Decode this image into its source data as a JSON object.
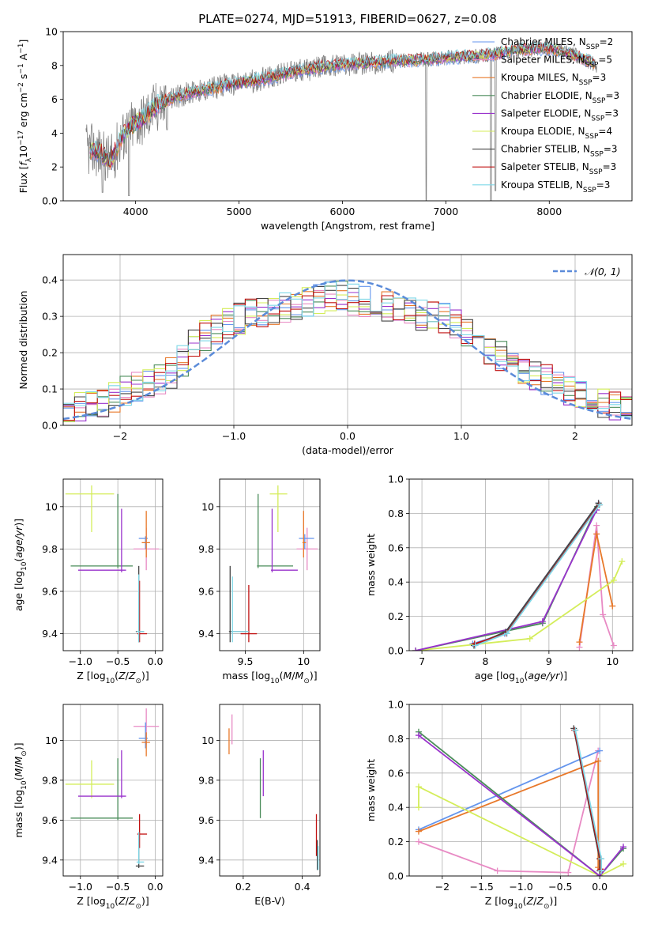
{
  "figure_title": "PLATE=0274, MJD=51913, FIBERID=0627, z=0.08",
  "chart_data": [
    {
      "type": "line",
      "title": "PLATE=0274, MJD=51913, FIBERID=0627, z=0.08",
      "xlabel": "wavelength [Angstrom, rest frame]",
      "ylabel": "Flux [fλ10⁻¹⁷ erg cm⁻² s⁻¹ A⁻¹]",
      "xlim": [
        3300,
        8800
      ],
      "ylim": [
        0,
        10
      ],
      "xticks": [
        4000,
        5000,
        6000,
        7000,
        8000
      ],
      "yticks": [
        0,
        2,
        4,
        6,
        8,
        10
      ],
      "legend_position": "top-right",
      "observed": {
        "color": "#808080",
        "continuum": [
          [
            3520,
            3.05
          ],
          [
            3650,
            2.9
          ],
          [
            3760,
            2.3
          ],
          [
            3850,
            3.6
          ],
          [
            3950,
            4.4
          ],
          [
            4080,
            4.9
          ],
          [
            4200,
            5.6
          ],
          [
            4350,
            6.05
          ],
          [
            4500,
            6.35
          ],
          [
            4700,
            6.6
          ],
          [
            4900,
            6.85
          ],
          [
            5100,
            7.05
          ],
          [
            5300,
            7.3
          ],
          [
            5500,
            7.6
          ],
          [
            5700,
            7.8
          ],
          [
            5900,
            8.0
          ],
          [
            6100,
            8.1
          ],
          [
            6300,
            8.15
          ],
          [
            6500,
            8.25
          ],
          [
            6700,
            8.3
          ],
          [
            6900,
            8.4
          ],
          [
            7100,
            8.5
          ],
          [
            7300,
            8.55
          ],
          [
            7500,
            8.7
          ],
          [
            7700,
            8.9
          ],
          [
            7900,
            9.0
          ],
          [
            8100,
            8.9
          ],
          [
            8300,
            8.5
          ],
          [
            8460,
            8.0
          ]
        ],
        "dips": [
          [
            3680,
            0.5
          ],
          [
            3935,
            0.3
          ],
          [
            4305,
            4.2
          ],
          [
            6810,
            0.0
          ],
          [
            7435,
            0.0
          ],
          [
            7480,
            0.6
          ]
        ]
      },
      "series": [
        {
          "name": "Chabrier MILES, NSSP=2",
          "color": "#6495ed"
        },
        {
          "name": "Salpeter MILES, NSSP=5",
          "color": "#e88ac4"
        },
        {
          "name": "Kroupa MILES, NSSP=3",
          "color": "#e8782a"
        },
        {
          "name": "Chabrier ELODIE, NSSP=3",
          "color": "#4a8c5a"
        },
        {
          "name": "Salpeter ELODIE, NSSP=3",
          "color": "#9932cc"
        },
        {
          "name": "Kroupa ELODIE, NSSP=4",
          "color": "#d4ed5a"
        },
        {
          "name": "Chabrier STELIB, NSSP=3",
          "color": "#444444"
        },
        {
          "name": "Salpeter STELIB, NSSP=3",
          "color": "#c01010"
        },
        {
          "name": "Kroupa STELIB, NSSP=3",
          "color": "#7fd8e8"
        }
      ]
    },
    {
      "type": "histogram",
      "xlabel": "(data-model)/error",
      "ylabel": "Normed distribution",
      "xlim": [
        -2.5,
        2.5
      ],
      "ylim": [
        0,
        0.47
      ],
      "xticks": [
        -2,
        -1,
        0,
        1,
        2
      ],
      "yticks": [
        0.0,
        0.1,
        0.2,
        0.3,
        0.4
      ],
      "bin_width": 0.1,
      "legend": [
        {
          "name": "𝒩(0, 1)",
          "color": "#5b8bd9",
          "style": "dashed"
        }
      ],
      "legend_position": "top-right",
      "base_curve": [
        [
          -2.5,
          0.045
        ],
        [
          -2.3,
          0.058
        ],
        [
          -2.1,
          0.07
        ],
        [
          -1.9,
          0.1
        ],
        [
          -1.7,
          0.12
        ],
        [
          -1.5,
          0.155
        ],
        [
          -1.3,
          0.24
        ],
        [
          -1.1,
          0.27
        ],
        [
          -0.9,
          0.3
        ],
        [
          -0.7,
          0.31
        ],
        [
          -0.5,
          0.33
        ],
        [
          -0.3,
          0.345
        ],
        [
          -0.1,
          0.355
        ],
        [
          0.1,
          0.345
        ],
        [
          0.3,
          0.33
        ],
        [
          0.5,
          0.31
        ],
        [
          0.7,
          0.3
        ],
        [
          0.9,
          0.29
        ],
        [
          1.1,
          0.25
        ],
        [
          1.3,
          0.195
        ],
        [
          1.5,
          0.165
        ],
        [
          1.7,
          0.13
        ],
        [
          1.9,
          0.1
        ],
        [
          2.1,
          0.075
        ],
        [
          2.3,
          0.058
        ],
        [
          2.5,
          0.04
        ]
      ],
      "spread": 0.045
    },
    {
      "type": "errorbar",
      "xlabel": "Z [log10(Z/Z⊙)]",
      "ylabel": "age  [log10(age/yr)]",
      "xlim": [
        -1.23,
        0.1
      ],
      "ylim": [
        9.32,
        10.13
      ],
      "xticks": [
        -1.0,
        -0.5,
        0.0
      ],
      "yticks": [
        9.4,
        9.6,
        9.8,
        10.0
      ],
      "points": [
        {
          "color": "#e88ac4",
          "x": -0.12,
          "y": 9.8,
          "xl": 0.17,
          "xr": 0.17,
          "yd": 0.1,
          "yu": 0.1
        },
        {
          "color": "#6495ed",
          "x": -0.13,
          "y": 9.85,
          "xl": 0.09,
          "xr": 0.03,
          "yd": 0.05,
          "yu": 0.01
        },
        {
          "color": "#e8782a",
          "x": -0.12,
          "y": 9.83,
          "xl": 0.06,
          "xr": 0.05,
          "yd": 0.07,
          "yu": 0.15
        },
        {
          "color": "#d4ed5a",
          "x": -0.85,
          "y": 10.06,
          "xl": 0.35,
          "xr": 0.3,
          "yd": 0.18,
          "yu": 0.04
        },
        {
          "color": "#4a8c5a",
          "x": -0.5,
          "y": 9.72,
          "xl": 0.63,
          "xr": 0.2,
          "yd": 0.01,
          "yu": 0.34
        },
        {
          "color": "#9932cc",
          "x": -0.45,
          "y": 9.7,
          "xl": 0.58,
          "xr": 0.06,
          "yd": 0.01,
          "yu": 0.29
        },
        {
          "color": "#444444",
          "x": -0.22,
          "y": 9.41,
          "xl": 0.04,
          "xr": 0.07,
          "yd": 0.05,
          "yu": 0.31
        },
        {
          "color": "#c01010",
          "x": -0.21,
          "y": 9.4,
          "xl": 0.03,
          "xr": 0.1,
          "yd": 0.04,
          "yu": 0.25
        },
        {
          "color": "#7fd8e8",
          "x": -0.22,
          "y": 9.41,
          "xl": 0.03,
          "xr": 0.07,
          "yd": 0.05,
          "yu": 0.27
        }
      ]
    },
    {
      "type": "errorbar",
      "xlabel": "mass [log10(M/M⊙)]",
      "ylabel": "",
      "xlim": [
        9.28,
        10.14
      ],
      "ylim": [
        9.32,
        10.13
      ],
      "xticks": [
        9.5,
        10.0
      ],
      "yticks": [
        9.4,
        9.6,
        9.8,
        10.0
      ],
      "points": [
        {
          "color": "#e88ac4",
          "x": 10.03,
          "y": 9.8,
          "xl": 0.09,
          "xr": 0.09,
          "yd": 0.1,
          "yu": 0.1
        },
        {
          "color": "#6495ed",
          "x": 10.01,
          "y": 9.85,
          "xl": 0.05,
          "xr": 0.08,
          "yd": 0.05,
          "yu": 0.02
        },
        {
          "color": "#e8782a",
          "x": 10.0,
          "y": 9.83,
          "xl": 0.01,
          "xr": 0.02,
          "yd": 0.07,
          "yu": 0.15
        },
        {
          "color": "#d4ed5a",
          "x": 9.78,
          "y": 10.06,
          "xl": 0.07,
          "xr": 0.08,
          "yd": 0.18,
          "yu": 0.04
        },
        {
          "color": "#4a8c5a",
          "x": 9.61,
          "y": 9.72,
          "xl": 0.01,
          "xr": 0.3,
          "yd": 0.01,
          "yu": 0.34
        },
        {
          "color": "#9932cc",
          "x": 9.73,
          "y": 9.7,
          "xl": 0.01,
          "xr": 0.22,
          "yd": 0.01,
          "yu": 0.29
        },
        {
          "color": "#444444",
          "x": 9.37,
          "y": 9.41,
          "xl": 0.01,
          "xr": 0.15,
          "yd": 0.05,
          "yu": 0.31
        },
        {
          "color": "#c01010",
          "x": 9.53,
          "y": 9.4,
          "xl": 0.07,
          "xr": 0.07,
          "yd": 0.04,
          "yu": 0.23
        },
        {
          "color": "#7fd8e8",
          "x": 9.39,
          "y": 9.41,
          "xl": 0.01,
          "xr": 0.14,
          "yd": 0.05,
          "yu": 0.26
        }
      ]
    },
    {
      "type": "line",
      "xlabel": "age  [log10(age/yr)]",
      "ylabel": "mass weight",
      "xlim": [
        6.8,
        10.32
      ],
      "ylim": [
        0,
        1
      ],
      "xticks": [
        7,
        8,
        9,
        10
      ],
      "yticks": [
        0.0,
        0.2,
        0.4,
        0.6,
        0.8,
        1.0
      ],
      "series": [
        {
          "color": "#e88ac4",
          "points": [
            [
              9.48,
              0.02
            ],
            [
              9.75,
              0.73
            ],
            [
              9.85,
              0.21
            ],
            [
              10.02,
              0.03
            ]
          ]
        },
        {
          "color": "#6495ed",
          "points": [
            [
              7.8,
              0.04
            ],
            [
              8.3,
              0.1
            ],
            [
              9.78,
              0.86
            ]
          ]
        },
        {
          "color": "#e8782a",
          "points": [
            [
              9.48,
              0.05
            ],
            [
              9.75,
              0.68
            ],
            [
              10.0,
              0.26
            ]
          ]
        },
        {
          "color": "#d4ed5a",
          "points": [
            [
              6.9,
              0.0
            ],
            [
              8.7,
              0.07
            ],
            [
              10.02,
              0.41
            ],
            [
              10.15,
              0.52
            ]
          ]
        },
        {
          "color": "#4a8c5a",
          "points": [
            [
              6.9,
              0.0
            ],
            [
              8.9,
              0.16
            ],
            [
              9.76,
              0.84
            ]
          ]
        },
        {
          "color": "#9932cc",
          "points": [
            [
              6.9,
              0.0
            ],
            [
              8.9,
              0.17
            ],
            [
              9.75,
              0.82
            ]
          ]
        },
        {
          "color": "#444444",
          "points": [
            [
              7.82,
              0.03
            ],
            [
              8.32,
              0.11
            ],
            [
              9.78,
              0.86
            ]
          ]
        },
        {
          "color": "#c01010",
          "points": [
            [
              7.83,
              0.04
            ],
            [
              8.33,
              0.1
            ],
            [
              9.79,
              0.85
            ]
          ]
        },
        {
          "color": "#7fd8e8",
          "points": [
            [
              7.84,
              0.03
            ],
            [
              8.34,
              0.1
            ],
            [
              9.8,
              0.85
            ]
          ]
        }
      ]
    },
    {
      "type": "errorbar",
      "xlabel": "Z [log10(Z/Z⊙)]",
      "ylabel": "mass [log10(M/M⊙)]",
      "xlim": [
        -1.23,
        0.1
      ],
      "ylim": [
        9.32,
        10.18
      ],
      "xticks": [
        -1.0,
        -0.5,
        0.0
      ],
      "yticks": [
        9.4,
        9.6,
        9.8,
        10.0
      ],
      "points": [
        {
          "color": "#e88ac4",
          "x": -0.12,
          "y": 10.07,
          "xl": 0.17,
          "xr": 0.17,
          "yd": 0.09,
          "yu": 0.09
        },
        {
          "color": "#6495ed",
          "x": -0.13,
          "y": 10.01,
          "xl": 0.09,
          "xr": 0.03,
          "yd": 0.05,
          "yu": 0.08
        },
        {
          "color": "#e8782a",
          "x": -0.12,
          "y": 9.99,
          "xl": 0.06,
          "xr": 0.05,
          "yd": 0.07,
          "yu": 0.05
        },
        {
          "color": "#d4ed5a",
          "x": -0.85,
          "y": 9.78,
          "xl": 0.35,
          "xr": 0.3,
          "yd": 0.07,
          "yu": 0.12
        },
        {
          "color": "#4a8c5a",
          "x": -0.5,
          "y": 9.61,
          "xl": 0.63,
          "xr": 0.2,
          "yd": 0.01,
          "yu": 0.3
        },
        {
          "color": "#9932cc",
          "x": -0.45,
          "y": 9.72,
          "xl": 0.58,
          "xr": 0.06,
          "yd": 0.01,
          "yu": 0.23
        },
        {
          "color": "#444444",
          "x": -0.22,
          "y": 9.37,
          "xl": 0.04,
          "xr": 0.07,
          "yd": 0.01,
          "yu": 0.15
        },
        {
          "color": "#c01010",
          "x": -0.21,
          "y": 9.53,
          "xl": 0.03,
          "xr": 0.1,
          "yd": 0.07,
          "yu": 0.1
        },
        {
          "color": "#7fd8e8",
          "x": -0.22,
          "y": 9.39,
          "xl": 0.03,
          "xr": 0.07,
          "yd": 0.01,
          "yu": 0.15
        }
      ]
    },
    {
      "type": "errorbar",
      "xlabel": "E(B-V)",
      "ylabel": "",
      "xlim": [
        0.12,
        0.46
      ],
      "ylim": [
        9.32,
        10.18
      ],
      "xticks": [
        0.2,
        0.4
      ],
      "yticks": [
        9.4,
        9.6,
        9.8,
        10.0
      ],
      "points": [
        {
          "color": "#e88ac4",
          "x": 0.162,
          "y": 10.07,
          "xl": 0,
          "xr": 0,
          "yd": 0.09,
          "yu": 0.06
        },
        {
          "color": "#e8782a",
          "x": 0.152,
          "y": 10.0,
          "xl": 0,
          "xr": 0,
          "yd": 0.07,
          "yu": 0.06
        },
        {
          "color": "#4a8c5a",
          "x": 0.258,
          "y": 9.78,
          "xl": 0,
          "xr": 0,
          "yd": 0.17,
          "yu": 0.13
        },
        {
          "color": "#9932cc",
          "x": 0.268,
          "y": 9.83,
          "xl": 0,
          "xr": 0,
          "yd": 0.11,
          "yu": 0.12
        },
        {
          "color": "#c01010",
          "x": 0.448,
          "y": 9.52,
          "xl": 0,
          "xr": 0,
          "yd": 0.1,
          "yu": 0.11
        },
        {
          "color": "#444444",
          "x": 0.451,
          "y": 9.42,
          "xl": 0,
          "xr": 0,
          "yd": 0.07,
          "yu": 0.08
        },
        {
          "color": "#7fd8e8",
          "x": 0.454,
          "y": 9.4,
          "xl": 0,
          "xr": 0,
          "yd": 0.05,
          "yu": 0.07
        }
      ]
    },
    {
      "type": "line",
      "xlabel": "Z [log10(Z/Z⊙)]",
      "ylabel": "mass weight",
      "xlim": [
        -2.42,
        0.42
      ],
      "ylim": [
        0,
        1
      ],
      "xticks": [
        -2.0,
        -1.5,
        -1.0,
        -0.5,
        0.0
      ],
      "yticks": [
        0.0,
        0.2,
        0.4,
        0.6,
        0.8,
        1.0
      ],
      "series": [
        {
          "color": "#e88ac4",
          "points": [
            [
              -2.3,
              0.2
            ],
            [
              -1.3,
              0.03
            ],
            [
              -0.4,
              0.02
            ],
            [
              -0.02,
              0.73
            ]
          ]
        },
        {
          "color": "#6495ed",
          "points": [
            [
              -2.3,
              0.27
            ],
            [
              0.0,
              0.73
            ]
          ]
        },
        {
          "color": "#e8782a",
          "points": [
            [
              -2.3,
              0.26
            ],
            [
              -0.02,
              0.67
            ],
            [
              -0.02,
              0.05
            ]
          ]
        },
        {
          "color": "#d4ed5a",
          "points": [
            [
              -2.3,
              0.4
            ],
            [
              -2.3,
              0.52
            ],
            [
              0.0,
              0.0
            ],
            [
              0.3,
              0.07
            ]
          ]
        },
        {
          "color": "#4a8c5a",
          "points": [
            [
              -2.3,
              0.84
            ],
            [
              0.0,
              0.0
            ],
            [
              0.3,
              0.16
            ]
          ]
        },
        {
          "color": "#9932cc",
          "points": [
            [
              -2.3,
              0.82
            ],
            [
              0.0,
              0.0
            ],
            [
              0.3,
              0.17
            ]
          ]
        },
        {
          "color": "#444444",
          "points": [
            [
              -0.33,
              0.86
            ],
            [
              0.0,
              0.1
            ],
            [
              0.0,
              0.03
            ]
          ]
        },
        {
          "color": "#c01010",
          "points": [
            [
              -0.32,
              0.85
            ],
            [
              0.01,
              0.1
            ],
            [
              0.01,
              0.04
            ]
          ]
        },
        {
          "color": "#7fd8e8",
          "points": [
            [
              -0.31,
              0.85
            ],
            [
              0.02,
              0.1
            ],
            [
              0.02,
              0.03
            ]
          ]
        }
      ]
    }
  ]
}
